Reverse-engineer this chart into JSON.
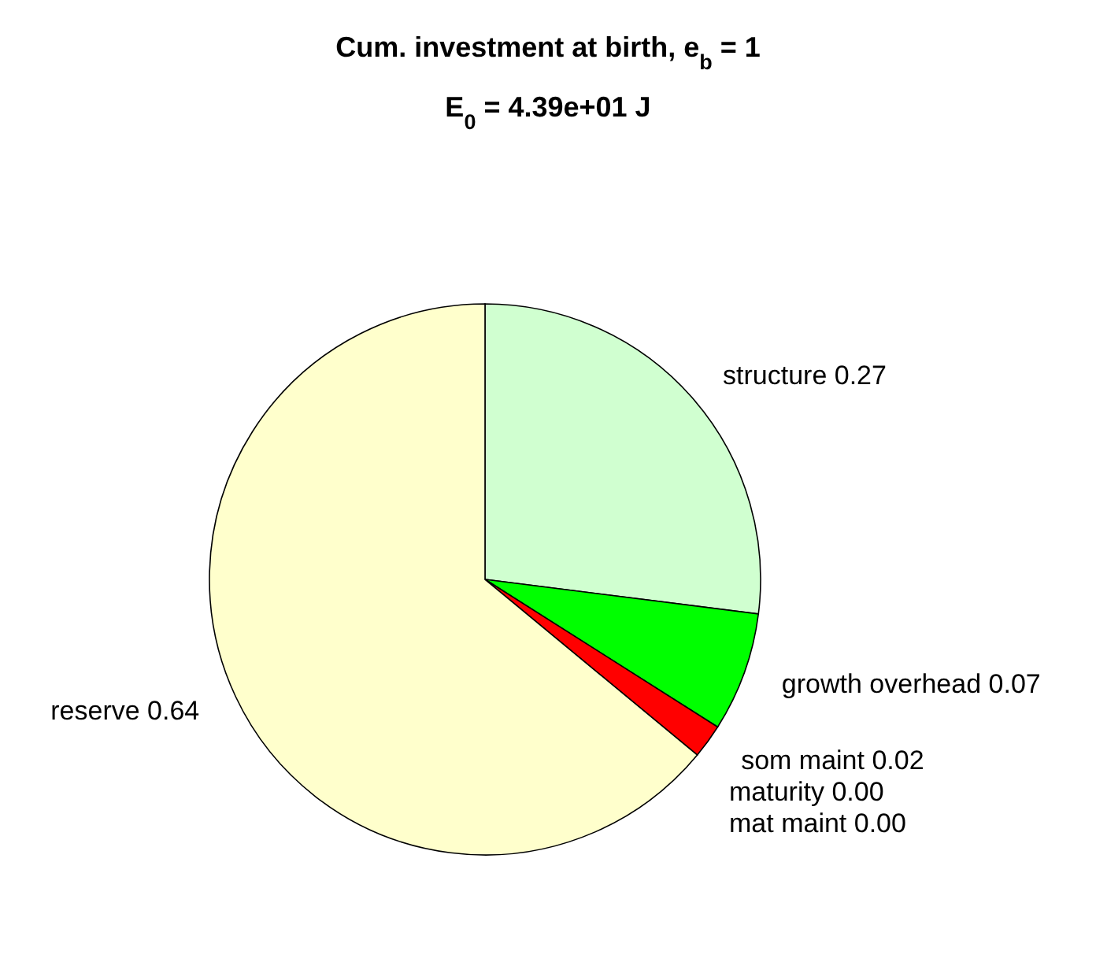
{
  "chart_data": {
    "type": "pie",
    "title": "Cum. investment at birth, e$_{b}$ = 1",
    "subtitle": "E$_{0}$ = 4.39e+01 J",
    "categories": [
      "structure",
      "growth overhead",
      "som maint",
      "maturity",
      "mat maint",
      "reserve"
    ],
    "values": [
      0.27,
      0.07,
      0.02,
      0.0,
      0.0,
      0.64
    ],
    "value_labels": [
      "0.27",
      "0.07",
      "0.02",
      "0.00",
      "0.00",
      "0.64"
    ],
    "colors": [
      "#d0ffd0",
      "#00ff00",
      "#ff0000",
      "#0000ff",
      "#ff00ff",
      "#ffffcc"
    ]
  }
}
